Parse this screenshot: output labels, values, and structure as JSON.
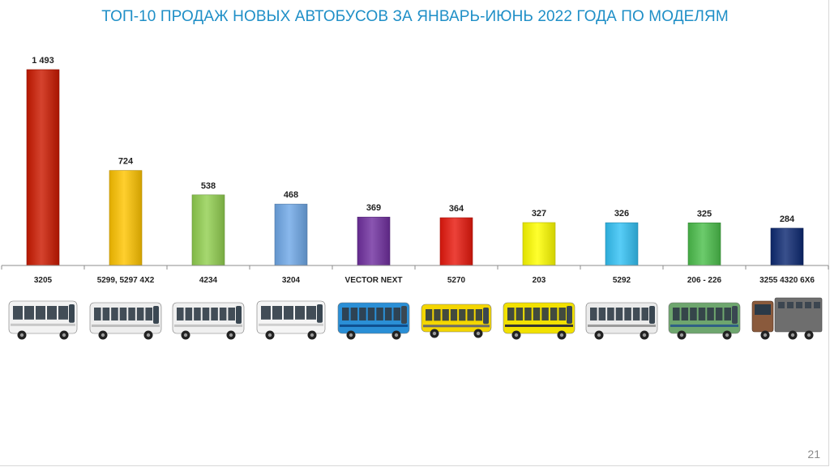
{
  "slide": {
    "title": "ТОП-10 ПРОДАЖ НОВЫХ АВТОБУСОВ ЗА ЯНВАРЬ-ИЮНЬ 2022 ГОДА ПО МОДЕЛЯМ",
    "page_number": "21"
  },
  "chart_data": {
    "type": "bar",
    "title": "ТОП-10 ПРОДАЖ НОВЫХ АВТОБУСОВ ЗА ЯНВАРЬ-ИЮНЬ 2022 ГОДА ПО МОДЕЛЯМ",
    "categories": [
      "3205",
      "5299, 5297 4X2",
      "4234",
      "3204",
      "VECTOR NEXT",
      "5270",
      "203",
      "5292",
      "206 - 226",
      "3255 4320 6X6"
    ],
    "values": [
      1493,
      724,
      538,
      468,
      369,
      364,
      327,
      326,
      325,
      284
    ],
    "value_labels": [
      "1 493",
      "724",
      "538",
      "468",
      "369",
      "364",
      "327",
      "326",
      "325",
      "284"
    ],
    "bar_colors": [
      "#cc1a00",
      "#ffc400",
      "#92d050",
      "#6fa8e8",
      "#7030a0",
      "#e8190e",
      "#ffff00",
      "#33c2f5",
      "#4cbf4c",
      "#0e2a73"
    ],
    "ylim": [
      0,
      1493
    ],
    "grid": false,
    "legend": "none"
  },
  "buses": [
    {
      "name": "bus-3205-image",
      "body": "#f2f2f2",
      "stripe": "#c8c8c8",
      "type": "small"
    },
    {
      "name": "bus-5299-image",
      "body": "#eeeeee",
      "stripe": "#bdbdbd",
      "type": "city"
    },
    {
      "name": "bus-4234-image",
      "body": "#f0f0f0",
      "stripe": "#c4c4c4",
      "type": "mid"
    },
    {
      "name": "bus-3204-image",
      "body": "#f5f5f5",
      "stripe": "#cfcfcf",
      "type": "small"
    },
    {
      "name": "bus-vector-next-image",
      "body": "#2a8fd6",
      "stripe": "#0f4f8f",
      "type": "mid"
    },
    {
      "name": "bus-5270-image",
      "body": "#f4d600",
      "stripe": "#6b6b6b",
      "type": "coach"
    },
    {
      "name": "bus-203-image",
      "body": "#f2e100",
      "stripe": "#333333",
      "type": "city"
    },
    {
      "name": "bus-5292-image",
      "body": "#ebebeb",
      "stripe": "#9a9a9a",
      "type": "city"
    },
    {
      "name": "bus-206-226-image",
      "body": "#6ea66e",
      "stripe": "#2f5f86",
      "type": "city"
    },
    {
      "name": "bus-3255-4320-image",
      "body": "#8a5a3c",
      "stripe": "#6e6e6e",
      "type": "truck"
    }
  ]
}
